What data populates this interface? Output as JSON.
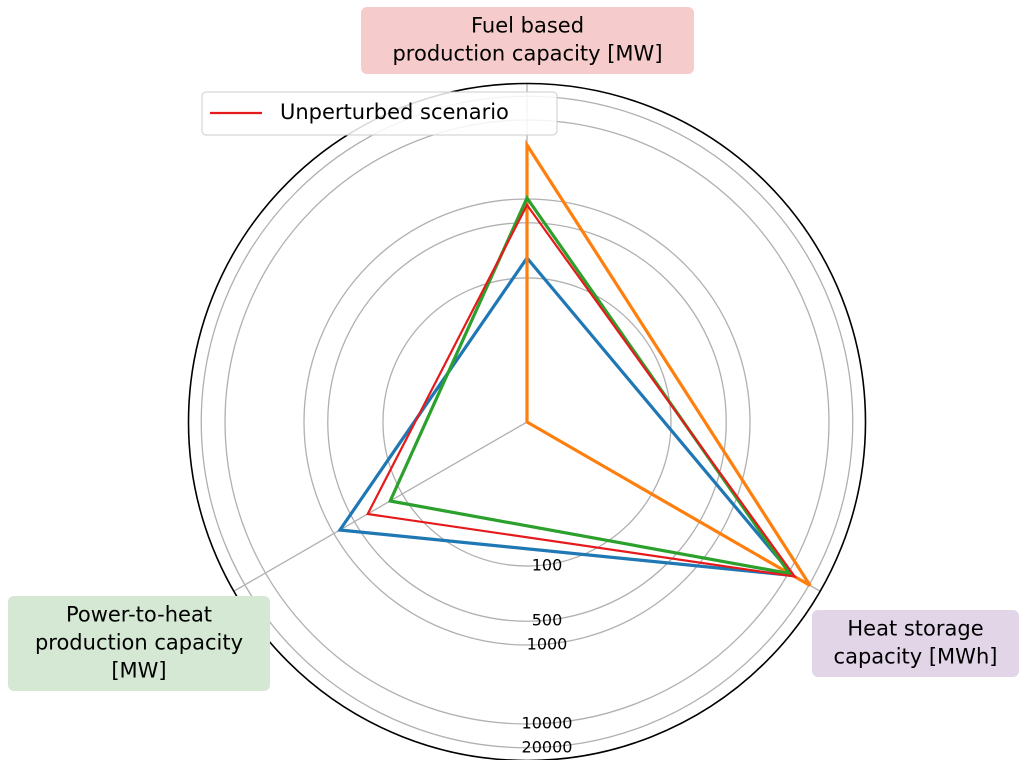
{
  "chart_data": {
    "type": "radar",
    "axes": [
      {
        "label": [
          "Fuel based",
          "production capacity [MW]"
        ],
        "color": "#f5cccb"
      },
      {
        "label": [
          "Heat storage",
          "capacity [MWh]"
        ],
        "color": "#e2d5e8"
      },
      {
        "label": [
          "Power-to-heat",
          "production capacity",
          "[MW]"
        ],
        "color": "#d5e8d4"
      }
    ],
    "log_scale": true,
    "rlim": [
      1.5,
      29000
    ],
    "rticks": [
      100,
      500,
      1000,
      10000,
      20000
    ],
    "grid": true,
    "legend_position": "upper left",
    "series": [
      {
        "color": "#1f77b4",
        "values": [
          179,
          11560,
          815
        ]
      },
      {
        "color": "#ff7f0e",
        "values": [
          4830,
          20700,
          1.5
        ]
      },
      {
        "color": "#2ca02c",
        "values": [
          1030,
          10300,
          150
        ]
      },
      {
        "name": "Unperturbed scenario",
        "color": "#e41a1c",
        "values": [
          840,
          12300,
          320
        ]
      }
    ]
  }
}
